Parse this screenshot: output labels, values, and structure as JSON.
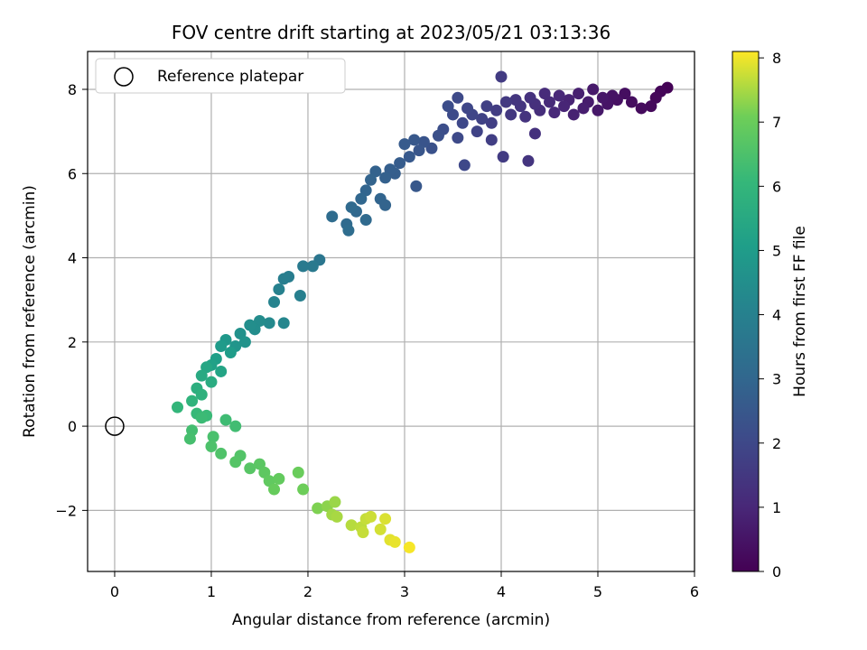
{
  "chart_data": {
    "type": "scatter",
    "title": "FOV centre drift starting at 2023/05/21 03:13:36",
    "xlabel": "Angular distance from reference (arcmin)",
    "ylabel": "Rotation from reference (arcmin)",
    "xlim": [
      -0.28,
      6.0
    ],
    "ylim": [
      -3.45,
      8.9
    ],
    "xticks": [
      0,
      1,
      2,
      3,
      4,
      5,
      6
    ],
    "yticks": [
      -2,
      0,
      2,
      4,
      6,
      8
    ],
    "grid": true,
    "legend": {
      "placement": "upper-left",
      "entries": [
        "Reference platepar"
      ]
    },
    "colorbar": {
      "label": "Hours from first FF file",
      "range": [
        0,
        8.1
      ],
      "ticks": [
        0,
        1,
        2,
        3,
        4,
        5,
        6,
        7,
        8
      ],
      "colormap": "viridis"
    },
    "reference_point": {
      "x": 0,
      "y": 0
    },
    "series": [
      {
        "values": [
          {
            "x": 5.72,
            "y": 8.04,
            "t": 0.05
          },
          {
            "x": 5.65,
            "y": 7.95,
            "t": 0.1
          },
          {
            "x": 5.6,
            "y": 7.8,
            "t": 0.15
          },
          {
            "x": 5.55,
            "y": 7.6,
            "t": 0.2
          },
          {
            "x": 5.45,
            "y": 7.55,
            "t": 0.25
          },
          {
            "x": 5.35,
            "y": 7.7,
            "t": 0.3
          },
          {
            "x": 5.28,
            "y": 7.9,
            "t": 0.35
          },
          {
            "x": 5.2,
            "y": 7.75,
            "t": 0.4
          },
          {
            "x": 5.15,
            "y": 7.85,
            "t": 0.45
          },
          {
            "x": 5.1,
            "y": 7.65,
            "t": 0.5
          },
          {
            "x": 5.05,
            "y": 7.8,
            "t": 0.55
          },
          {
            "x": 5.0,
            "y": 7.5,
            "t": 0.6
          },
          {
            "x": 4.95,
            "y": 8.0,
            "t": 0.65
          },
          {
            "x": 4.9,
            "y": 7.7,
            "t": 0.7
          },
          {
            "x": 4.85,
            "y": 7.55,
            "t": 0.75
          },
          {
            "x": 4.8,
            "y": 7.9,
            "t": 0.8
          },
          {
            "x": 4.75,
            "y": 7.4,
            "t": 0.85
          },
          {
            "x": 4.7,
            "y": 7.75,
            "t": 0.9
          },
          {
            "x": 4.65,
            "y": 7.6,
            "t": 0.95
          },
          {
            "x": 4.6,
            "y": 7.85,
            "t": 1.0
          },
          {
            "x": 4.55,
            "y": 7.45,
            "t": 1.05
          },
          {
            "x": 4.5,
            "y": 7.7,
            "t": 1.1
          },
          {
            "x": 4.45,
            "y": 7.9,
            "t": 1.15
          },
          {
            "x": 4.4,
            "y": 7.5,
            "t": 1.2
          },
          {
            "x": 4.35,
            "y": 7.65,
            "t": 1.25
          },
          {
            "x": 4.3,
            "y": 7.8,
            "t": 1.3
          },
          {
            "x": 4.25,
            "y": 7.35,
            "t": 1.35
          },
          {
            "x": 4.2,
            "y": 7.6,
            "t": 1.4
          },
          {
            "x": 4.15,
            "y": 7.75,
            "t": 1.45
          },
          {
            "x": 4.1,
            "y": 7.4,
            "t": 1.5
          },
          {
            "x": 4.05,
            "y": 7.7,
            "t": 1.55
          },
          {
            "x": 4.0,
            "y": 8.3,
            "t": 1.6
          },
          {
            "x": 3.95,
            "y": 7.5,
            "t": 1.65
          },
          {
            "x": 3.9,
            "y": 7.2,
            "t": 1.7
          },
          {
            "x": 3.85,
            "y": 7.6,
            "t": 1.75
          },
          {
            "x": 3.8,
            "y": 7.3,
            "t": 1.8
          },
          {
            "x": 3.75,
            "y": 7.0,
            "t": 1.85
          },
          {
            "x": 3.7,
            "y": 7.4,
            "t": 1.9
          },
          {
            "x": 3.65,
            "y": 7.55,
            "t": 1.95
          },
          {
            "x": 3.6,
            "y": 7.2,
            "t": 2.0
          },
          {
            "x": 3.55,
            "y": 7.8,
            "t": 2.05
          },
          {
            "x": 3.5,
            "y": 7.4,
            "t": 2.1
          },
          {
            "x": 3.45,
            "y": 7.6,
            "t": 2.15
          },
          {
            "x": 3.4,
            "y": 7.05,
            "t": 2.2
          },
          {
            "x": 4.28,
            "y": 6.3,
            "t": 1.4
          },
          {
            "x": 4.02,
            "y": 6.4,
            "t": 1.6
          },
          {
            "x": 3.62,
            "y": 6.2,
            "t": 2.0
          },
          {
            "x": 3.55,
            "y": 6.85,
            "t": 2.05
          },
          {
            "x": 3.9,
            "y": 6.8,
            "t": 1.7
          },
          {
            "x": 4.35,
            "y": 6.95,
            "t": 1.3
          },
          {
            "x": 3.35,
            "y": 6.9,
            "t": 2.25
          },
          {
            "x": 3.28,
            "y": 6.6,
            "t": 2.3
          },
          {
            "x": 3.2,
            "y": 6.75,
            "t": 2.4
          },
          {
            "x": 3.15,
            "y": 6.55,
            "t": 2.45
          },
          {
            "x": 3.1,
            "y": 6.8,
            "t": 2.5
          },
          {
            "x": 3.05,
            "y": 6.4,
            "t": 2.55
          },
          {
            "x": 3.0,
            "y": 6.7,
            "t": 2.6
          },
          {
            "x": 2.95,
            "y": 6.25,
            "t": 2.65
          },
          {
            "x": 2.9,
            "y": 6.0,
            "t": 2.7
          },
          {
            "x": 2.85,
            "y": 6.1,
            "t": 2.75
          },
          {
            "x": 3.12,
            "y": 5.7,
            "t": 2.5
          },
          {
            "x": 2.8,
            "y": 5.9,
            "t": 2.8
          },
          {
            "x": 2.7,
            "y": 6.05,
            "t": 2.85
          },
          {
            "x": 2.65,
            "y": 5.85,
            "t": 2.9
          },
          {
            "x": 2.6,
            "y": 5.6,
            "t": 2.95
          },
          {
            "x": 2.55,
            "y": 5.4,
            "t": 3.0
          },
          {
            "x": 2.5,
            "y": 5.1,
            "t": 3.05
          },
          {
            "x": 2.45,
            "y": 5.2,
            "t": 3.1
          },
          {
            "x": 2.4,
            "y": 4.8,
            "t": 3.15
          },
          {
            "x": 2.6,
            "y": 4.9,
            "t": 3.1
          },
          {
            "x": 2.75,
            "y": 5.4,
            "t": 2.95
          },
          {
            "x": 2.8,
            "y": 5.25,
            "t": 2.9
          },
          {
            "x": 2.25,
            "y": 4.98,
            "t": 3.2
          },
          {
            "x": 2.42,
            "y": 4.65,
            "t": 3.25
          },
          {
            "x": 2.12,
            "y": 3.95,
            "t": 3.6
          },
          {
            "x": 2.05,
            "y": 3.8,
            "t": 3.7
          },
          {
            "x": 1.95,
            "y": 3.8,
            "t": 3.75
          },
          {
            "x": 1.8,
            "y": 3.55,
            "t": 3.85
          },
          {
            "x": 1.75,
            "y": 3.5,
            "t": 3.9
          },
          {
            "x": 1.7,
            "y": 3.25,
            "t": 4.0
          },
          {
            "x": 1.65,
            "y": 2.95,
            "t": 4.1
          },
          {
            "x": 1.92,
            "y": 3.1,
            "t": 3.95
          },
          {
            "x": 1.75,
            "y": 2.45,
            "t": 4.2
          },
          {
            "x": 1.6,
            "y": 2.45,
            "t": 4.3
          },
          {
            "x": 1.5,
            "y": 2.5,
            "t": 4.4
          },
          {
            "x": 1.45,
            "y": 2.3,
            "t": 4.45
          },
          {
            "x": 1.4,
            "y": 2.4,
            "t": 4.5
          },
          {
            "x": 1.3,
            "y": 2.2,
            "t": 4.6
          },
          {
            "x": 1.35,
            "y": 2.0,
            "t": 4.65
          },
          {
            "x": 1.25,
            "y": 1.9,
            "t": 4.75
          },
          {
            "x": 1.15,
            "y": 2.05,
            "t": 4.85
          },
          {
            "x": 1.1,
            "y": 1.9,
            "t": 4.95
          },
          {
            "x": 1.2,
            "y": 1.75,
            "t": 5.0
          },
          {
            "x": 1.05,
            "y": 1.6,
            "t": 5.1
          },
          {
            "x": 1.0,
            "y": 1.45,
            "t": 5.2
          },
          {
            "x": 1.1,
            "y": 1.3,
            "t": 5.3
          },
          {
            "x": 0.95,
            "y": 1.4,
            "t": 5.4
          },
          {
            "x": 0.9,
            "y": 1.2,
            "t": 5.5
          },
          {
            "x": 1.0,
            "y": 1.05,
            "t": 5.6
          },
          {
            "x": 0.85,
            "y": 0.9,
            "t": 5.7
          },
          {
            "x": 0.9,
            "y": 0.75,
            "t": 5.8
          },
          {
            "x": 0.8,
            "y": 0.6,
            "t": 5.9
          },
          {
            "x": 0.65,
            "y": 0.45,
            "t": 6.0
          },
          {
            "x": 0.85,
            "y": 0.3,
            "t": 6.1
          },
          {
            "x": 0.95,
            "y": 0.25,
            "t": 6.15
          },
          {
            "x": 0.9,
            "y": 0.2,
            "t": 6.2
          },
          {
            "x": 1.15,
            "y": 0.15,
            "t": 6.25
          },
          {
            "x": 1.25,
            "y": 0.0,
            "t": 6.3
          },
          {
            "x": 0.8,
            "y": -0.1,
            "t": 6.35
          },
          {
            "x": 0.78,
            "y": -0.3,
            "t": 6.4
          },
          {
            "x": 1.02,
            "y": -0.25,
            "t": 6.45
          },
          {
            "x": 1.0,
            "y": -0.48,
            "t": 6.5
          },
          {
            "x": 1.1,
            "y": -0.65,
            "t": 6.55
          },
          {
            "x": 1.3,
            "y": -0.7,
            "t": 6.6
          },
          {
            "x": 1.25,
            "y": -0.85,
            "t": 6.65
          },
          {
            "x": 1.4,
            "y": -1.0,
            "t": 6.7
          },
          {
            "x": 1.5,
            "y": -0.9,
            "t": 6.75
          },
          {
            "x": 1.55,
            "y": -1.1,
            "t": 6.8
          },
          {
            "x": 1.6,
            "y": -1.3,
            "t": 6.85
          },
          {
            "x": 1.7,
            "y": -1.25,
            "t": 6.9
          },
          {
            "x": 1.65,
            "y": -1.5,
            "t": 6.95
          },
          {
            "x": 1.9,
            "y": -1.1,
            "t": 7.0
          },
          {
            "x": 1.95,
            "y": -1.5,
            "t": 7.05
          },
          {
            "x": 2.1,
            "y": -1.95,
            "t": 7.2
          },
          {
            "x": 2.2,
            "y": -1.9,
            "t": 7.3
          },
          {
            "x": 2.28,
            "y": -1.8,
            "t": 7.4
          },
          {
            "x": 2.25,
            "y": -2.1,
            "t": 7.45
          },
          {
            "x": 2.3,
            "y": -2.15,
            "t": 7.5
          },
          {
            "x": 2.45,
            "y": -2.35,
            "t": 7.6
          },
          {
            "x": 2.55,
            "y": -2.4,
            "t": 7.65
          },
          {
            "x": 2.6,
            "y": -2.2,
            "t": 7.7
          },
          {
            "x": 2.65,
            "y": -2.15,
            "t": 7.75
          },
          {
            "x": 2.75,
            "y": -2.45,
            "t": 7.8
          },
          {
            "x": 2.8,
            "y": -2.2,
            "t": 7.85
          },
          {
            "x": 2.85,
            "y": -2.7,
            "t": 7.9
          },
          {
            "x": 2.9,
            "y": -2.75,
            "t": 7.95
          },
          {
            "x": 3.05,
            "y": -2.88,
            "t": 8.05
          },
          {
            "x": 2.57,
            "y": -2.52,
            "t": 7.7
          }
        ]
      }
    ]
  }
}
